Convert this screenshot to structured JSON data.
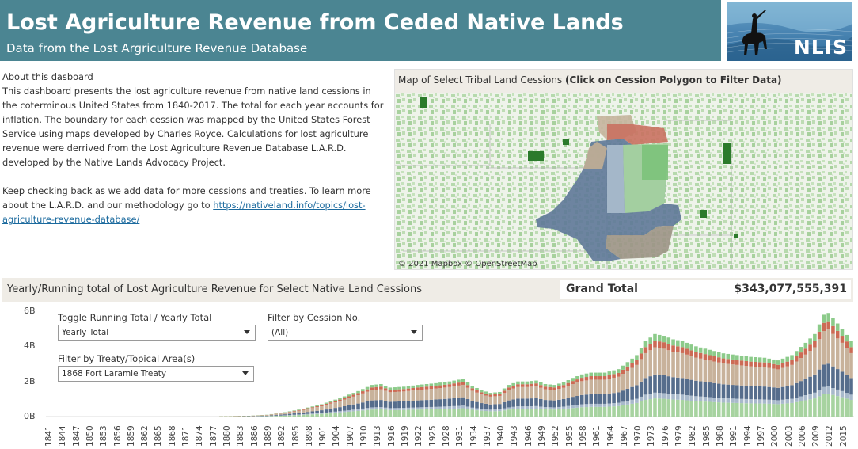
{
  "header": {
    "title": "Lost Agriculture Revenue from Ceded Native Lands",
    "subtitle": "Data from the Lost Argriculture Revenue Database"
  },
  "logo": {
    "text": "NLIS",
    "icon": "horse-rider-silhouette-icon"
  },
  "about": {
    "title": "About this dasboard",
    "paragraph1": "This dashboard presents the lost agriculture revenue  from native land cessions in the coterminous United States from 1840-2017. The total for each year accounts for inflation. The boundary for each cession was mapped by the United States Forest Service using maps developed by Charles Royce. Calculations for lost agriculture revenue were derrived from the Lost Agriculture Revenue Database L.A.R.D. developed by the Native Lands Advocacy Project.",
    "paragraph2_text": "Keep checking back as we  add data for more cessions and treaties. To learn more about the L.A.R.D. and our methodology go to ",
    "link": "https://nativeland.info/topics/lost-agriculture-revenue-database/"
  },
  "map": {
    "header_plain": "Map of Select Tribal Land Cessions ",
    "header_bold": "(Click on Cession Polygon to Filter Data)",
    "credit": "© 2021 Mapbox  © OpenStreetMap"
  },
  "chart_section": {
    "title": "Yearly/Running total of Lost Agriculture Revenue for Select Native Land Cessions",
    "grand_total_label": "Grand Total",
    "grand_total_value": "$343,077,555,391"
  },
  "controls": {
    "toggle": {
      "label": "Toggle Running Total / Yearly Total",
      "value": "Yearly Total"
    },
    "cession": {
      "label": "Filter by Cession No.",
      "value": "(All)"
    },
    "treaty": {
      "label": "Filter by Treaty/Topical Area(s)",
      "value": "1868 Fort Laramie Treaty"
    }
  },
  "colors": {
    "header_bg": "#4b8592",
    "panel_bg": "#efece6",
    "series_green": "#a7d3a0",
    "series_lightblue": "#a8b9cb",
    "series_navy": "#566d8c",
    "series_tan": "#c8b29b",
    "series_red": "#cc6b55",
    "series_lightgreen": "#8ccb8a"
  },
  "chart_data": {
    "type": "bar",
    "stacked": true,
    "y_tick_labels": [
      "6B",
      "4B",
      "2B",
      "0B"
    ],
    "ylim": [
      0,
      6000000000
    ],
    "x_tick_labels": [
      "1841",
      "1844",
      "1847",
      "1850",
      "1853",
      "1856",
      "1859",
      "1862",
      "1865",
      "1868",
      "1871",
      "1874",
      "1877",
      "1880",
      "1883",
      "1886",
      "1889",
      "1892",
      "1895",
      "1898",
      "1901",
      "1904",
      "1907",
      "1910",
      "1913",
      "1916",
      "1919",
      "1922",
      "1925",
      "1928",
      "1931",
      "1934",
      "1937",
      "1940",
      "1943",
      "1946",
      "1949",
      "1952",
      "1955",
      "1958",
      "1961",
      "1964",
      "1967",
      "1970",
      "1973",
      "1976",
      "1979",
      "1982",
      "1985",
      "1988",
      "1991",
      "1994",
      "1997",
      "2000",
      "2003",
      "2006",
      "2009",
      "2012",
      "2015"
    ],
    "x_range": [
      1841,
      2017
    ],
    "total_keypoints": [
      [
        1841,
        0
      ],
      [
        1878,
        0
      ],
      [
        1880,
        20000000
      ],
      [
        1885,
        40000000
      ],
      [
        1889,
        100000000
      ],
      [
        1893,
        250000000
      ],
      [
        1897,
        450000000
      ],
      [
        1901,
        700000000
      ],
      [
        1905,
        1050000000
      ],
      [
        1909,
        1450000000
      ],
      [
        1912,
        1800000000
      ],
      [
        1914,
        1850000000
      ],
      [
        1916,
        1650000000
      ],
      [
        1919,
        1700000000
      ],
      [
        1922,
        1800000000
      ],
      [
        1926,
        1900000000
      ],
      [
        1929,
        2000000000
      ],
      [
        1932,
        2150000000
      ],
      [
        1934,
        1750000000
      ],
      [
        1936,
        1500000000
      ],
      [
        1938,
        1350000000
      ],
      [
        1940,
        1400000000
      ],
      [
        1942,
        1800000000
      ],
      [
        1944,
        2000000000
      ],
      [
        1946,
        2000000000
      ],
      [
        1948,
        2050000000
      ],
      [
        1950,
        1850000000
      ],
      [
        1952,
        1800000000
      ],
      [
        1954,
        1950000000
      ],
      [
        1956,
        2200000000
      ],
      [
        1958,
        2400000000
      ],
      [
        1960,
        2500000000
      ],
      [
        1963,
        2500000000
      ],
      [
        1966,
        2700000000
      ],
      [
        1968,
        3100000000
      ],
      [
        1970,
        3500000000
      ],
      [
        1972,
        4300000000
      ],
      [
        1974,
        4700000000
      ],
      [
        1976,
        4600000000
      ],
      [
        1978,
        4400000000
      ],
      [
        1980,
        4300000000
      ],
      [
        1983,
        4000000000
      ],
      [
        1986,
        3800000000
      ],
      [
        1989,
        3600000000
      ],
      [
        1992,
        3500000000
      ],
      [
        1995,
        3400000000
      ],
      [
        1998,
        3350000000
      ],
      [
        2001,
        3200000000
      ],
      [
        2004,
        3500000000
      ],
      [
        2007,
        4200000000
      ],
      [
        2009,
        4700000000
      ],
      [
        2011,
        5800000000
      ],
      [
        2012,
        5900000000
      ],
      [
        2013,
        5600000000
      ],
      [
        2015,
        5000000000
      ],
      [
        2017,
        4300000000
      ]
    ],
    "series_share": [
      {
        "color": "#a7d3a0",
        "share": 0.22
      },
      {
        "color": "#a8b9cb",
        "share": 0.07
      },
      {
        "color": "#566d8c",
        "share": 0.22
      },
      {
        "color": "#c8b29b",
        "share": 0.33
      },
      {
        "color": "#cc6b55",
        "share": 0.08
      },
      {
        "color": "#8ccb8a",
        "share": 0.08
      }
    ]
  }
}
